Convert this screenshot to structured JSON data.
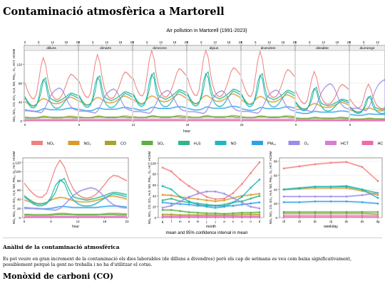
{
  "page": {
    "title": "Contaminació atmosfèrica a Martorell",
    "section_heading": "Anàlisi de la contaminació atmosfèrica",
    "section_text": "Es pot veure en gran increment de la contaminació els dies laborables (de dilluns a divendres) però els cap de setmana es veu com baixa significativament, possiblement perquè la gent no treballa i no ha d'utilitzar el cotxe.",
    "subsection_heading": "Monòxid de carboni (CO)"
  },
  "chart_data": {
    "type": "line",
    "title": "Air pollution in Martorell (1991-2023)",
    "ylabel": "NOₓ, NO₂, CO, SO₂, H₂S, NO, PM₁₀, O₃, HCT, HCMM",
    "footnote": "mean and 95% confidence interval in mean",
    "colors": [
      "#f08080",
      "#d89a2a",
      "#a5a529",
      "#5cae3e",
      "#2fb886",
      "#1fb7bf",
      "#2fa0e6",
      "#9c8ce6",
      "#dc7ad6",
      "#ee6aa8"
    ],
    "legend": {
      "placement": "middle",
      "entries": [
        "NOₓ",
        "NO₂",
        "CO",
        "SO₂",
        "H₂S",
        "NO",
        "PM₁₀",
        "O₃",
        "HCT",
        "HC"
      ]
    },
    "top": {
      "days": [
        "dilluns",
        "dimarts",
        "dimecres",
        "dijous",
        "divendres",
        "dissabte",
        "diumenge"
      ],
      "hour_ticks": [
        "0",
        "6",
        "12",
        "18",
        "23"
      ],
      "bottom_ticks": [
        "0",
        "6",
        "12",
        "18",
        "23"
      ],
      "xlabel": "hour",
      "yticks": [
        "0",
        "40",
        "80",
        "120"
      ],
      "ylim": [
        0,
        160
      ]
    },
    "hour": {
      "xlabel": "hour",
      "xticks": [
        "0",
        "6",
        "12",
        "18",
        "23"
      ],
      "yticks": [
        "0",
        "20",
        "40",
        "60",
        "80",
        "100",
        "120"
      ],
      "ylim": [
        0,
        130
      ],
      "series": [
        {
          "name": "NOₓ",
          "values": [
            75,
            62,
            52,
            45,
            44,
            53,
            80,
            108,
            125,
            110,
            82,
            62,
            50,
            44,
            42,
            44,
            50,
            60,
            72,
            85,
            92,
            90,
            85,
            80
          ]
        },
        {
          "name": "NO₂",
          "values": [
            38,
            35,
            32,
            30,
            30,
            33,
            38,
            42,
            44,
            43,
            40,
            37,
            35,
            34,
            34,
            35,
            37,
            40,
            43,
            46,
            47,
            45,
            43,
            40
          ]
        },
        {
          "name": "CO",
          "values": [
            7,
            7,
            6,
            6,
            6,
            6,
            7,
            8,
            9,
            9,
            8,
            7,
            6,
            6,
            6,
            6,
            6,
            7,
            8,
            9,
            9,
            9,
            8,
            8
          ]
        },
        {
          "name": "SO₂",
          "values": [
            6,
            6,
            6,
            6,
            6,
            6,
            6,
            7,
            7,
            7,
            7,
            7,
            7,
            7,
            7,
            7,
            7,
            7,
            7,
            7,
            7,
            6,
            6,
            6
          ]
        },
        {
          "name": "H₂S",
          "values": [
            48,
            40,
            34,
            30,
            30,
            32,
            40,
            55,
            80,
            85,
            62,
            45,
            42,
            40,
            38,
            40,
            42,
            45,
            48,
            52,
            55,
            54,
            52,
            50
          ]
        },
        {
          "name": "NO",
          "values": [
            45,
            38,
            30,
            26,
            26,
            30,
            45,
            70,
            82,
            75,
            50,
            38,
            30,
            26,
            25,
            26,
            30,
            36,
            42,
            48,
            52,
            50,
            48,
            45
          ]
        },
        {
          "name": "PM₁₀",
          "values": [
            22,
            21,
            20,
            19,
            19,
            19,
            20,
            22,
            24,
            24,
            23,
            22,
            22,
            22,
            22,
            22,
            22,
            23,
            24,
            25,
            25,
            25,
            24,
            23
          ]
        },
        {
          "name": "O₃",
          "values": [
            20,
            20,
            20,
            20,
            19,
            18,
            17,
            16,
            20,
            28,
            38,
            48,
            55,
            60,
            63,
            65,
            62,
            55,
            45,
            35,
            28,
            24,
            22,
            21
          ]
        },
        {
          "name": "HCT",
          "values": [
            3,
            3,
            3,
            3,
            3,
            3,
            3,
            3,
            3,
            3,
            3,
            3,
            3,
            3,
            3,
            3,
            3,
            3,
            3,
            3,
            3,
            3,
            3,
            3
          ]
        },
        {
          "name": "HC",
          "values": [
            1,
            1,
            1,
            1,
            1,
            1,
            1,
            1,
            1,
            1,
            1,
            1,
            1,
            1,
            1,
            1,
            1,
            1,
            1,
            1,
            1,
            1,
            1,
            1
          ]
        }
      ]
    },
    "month": {
      "xlabel": "month",
      "categories": [
        "g",
        "f",
        "m",
        "a",
        "m",
        "j",
        "j",
        "a",
        "s",
        "o",
        "n",
        "d"
      ],
      "yticks": [
        "0",
        "20",
        "40",
        "60",
        "80",
        "100"
      ],
      "ylim": [
        0,
        110
      ],
      "series": [
        {
          "name": "NOₓ",
          "values": [
            92,
            85,
            70,
            58,
            48,
            38,
            34,
            35,
            45,
            62,
            82,
            102
          ]
        },
        {
          "name": "NO₂",
          "values": [
            42,
            41,
            38,
            36,
            34,
            32,
            30,
            32,
            36,
            40,
            42,
            44
          ]
        },
        {
          "name": "CO",
          "values": [
            6,
            6,
            5,
            5,
            5,
            5,
            5,
            5,
            5,
            6,
            6,
            6
          ]
        },
        {
          "name": "SO₂",
          "values": [
            14,
            14,
            12,
            10,
            9,
            8,
            8,
            7,
            8,
            9,
            9,
            10
          ]
        },
        {
          "name": "H₂S",
          "values": [
            32,
            35,
            30,
            28,
            26,
            24,
            22,
            24,
            28,
            30,
            35,
            40
          ]
        },
        {
          "name": "NO",
          "values": [
            58,
            52,
            38,
            30,
            24,
            20,
            18,
            20,
            28,
            38,
            55,
            70
          ]
        },
        {
          "name": "PM₁₀",
          "values": [
            28,
            26,
            25,
            24,
            22,
            22,
            22,
            21,
            22,
            24,
            26,
            28
          ]
        },
        {
          "name": "O₃",
          "values": [
            18,
            22,
            30,
            38,
            44,
            48,
            48,
            44,
            36,
            28,
            20,
            17
          ]
        },
        {
          "name": "HCT",
          "values": [
            3,
            3,
            3,
            3,
            3,
            3,
            3,
            3,
            3,
            3,
            3,
            3
          ]
        },
        {
          "name": "HC",
          "values": [
            1,
            1,
            1,
            1,
            1,
            1,
            1,
            1,
            1,
            1,
            1,
            1
          ]
        }
      ]
    },
    "weekday": {
      "xlabel": "weekday",
      "categories": [
        "dl",
        "dt",
        "dc",
        "dj",
        "dv",
        "ds",
        "dg"
      ],
      "yticks": [
        "0",
        "20",
        "40",
        "60",
        "80"
      ],
      "ylim": [
        0,
        85
      ],
      "series": [
        {
          "name": "NOₓ",
          "values": [
            70,
            73,
            76,
            78,
            79,
            72,
            52
          ]
        },
        {
          "name": "NO₂",
          "values": [
            40,
            41,
            42,
            42,
            42,
            38,
            32
          ]
        },
        {
          "name": "CO",
          "values": [
            6,
            6,
            6,
            6,
            6,
            6,
            5
          ]
        },
        {
          "name": "SO₂",
          "values": [
            8,
            8,
            8,
            8,
            8,
            8,
            8
          ]
        },
        {
          "name": "H₂S",
          "values": [
            40,
            42,
            44,
            44,
            44,
            40,
            35
          ]
        },
        {
          "name": "NO",
          "values": [
            40,
            42,
            44,
            44,
            45,
            40,
            28
          ]
        },
        {
          "name": "PM₁₀",
          "values": [
            22,
            22,
            23,
            23,
            23,
            22,
            20
          ]
        },
        {
          "name": "O₃",
          "values": [
            30,
            30,
            30,
            30,
            30,
            32,
            35
          ]
        },
        {
          "name": "HCT",
          "values": [
            3,
            3,
            3,
            3,
            3,
            3,
            3
          ]
        },
        {
          "name": "HC",
          "values": [
            1,
            1,
            1,
            1,
            1,
            1,
            1
          ]
        }
      ]
    }
  }
}
